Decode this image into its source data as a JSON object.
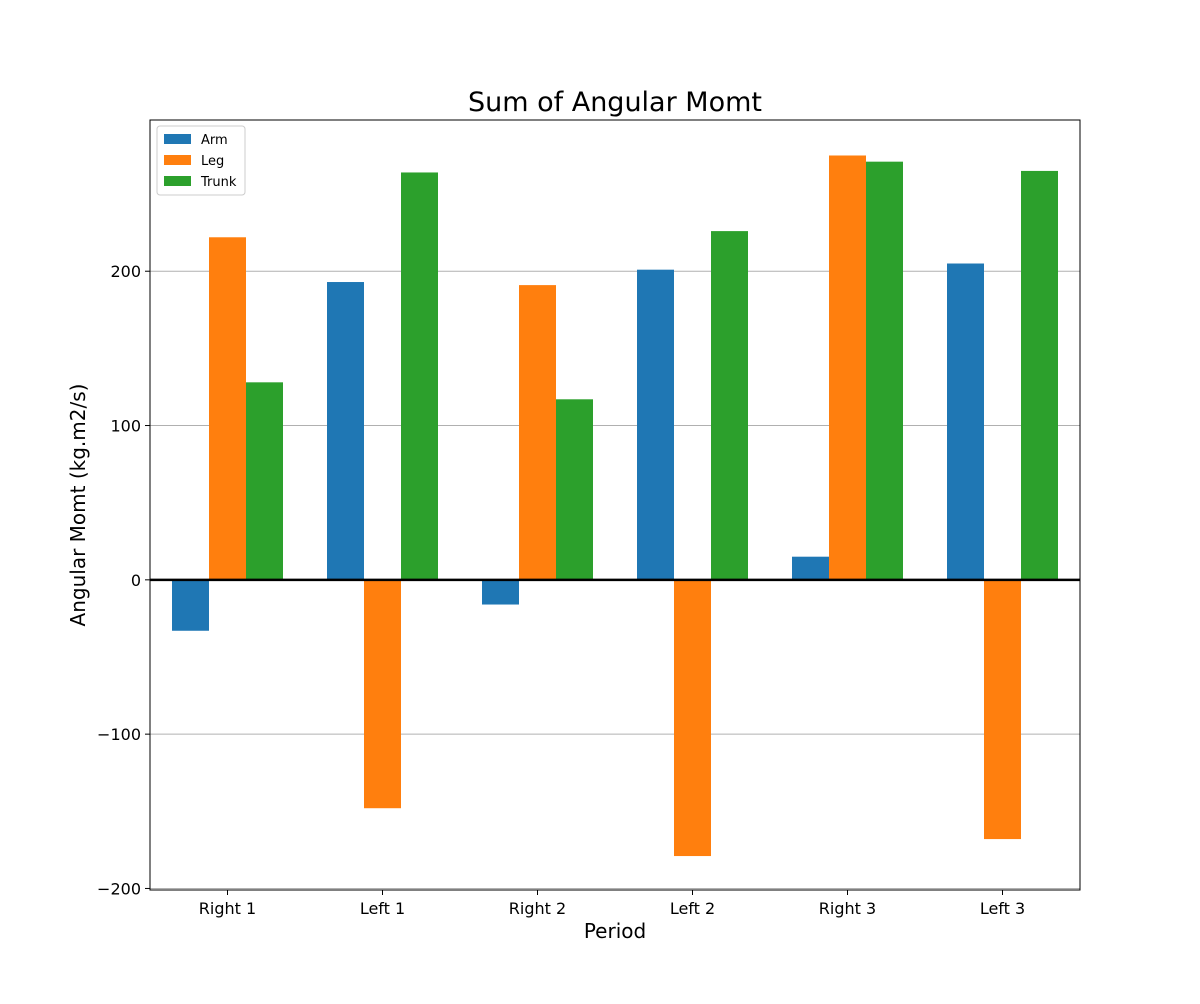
{
  "chart_data": {
    "type": "bar",
    "title": "Sum of Angular Momt",
    "xlabel": "Period",
    "ylabel": "Angular Momt (kg.m2/s)",
    "categories": [
      "Right 1",
      "Left 1",
      "Right 2",
      "Left 2",
      "Right 3",
      "Left 3"
    ],
    "series": [
      {
        "name": "Arm",
        "color": "#1f77b4",
        "values": [
          -33,
          193,
          -16,
          201,
          15,
          205
        ]
      },
      {
        "name": "Leg",
        "color": "#ff7f0e",
        "values": [
          222,
          -148,
          191,
          -179,
          275,
          -168
        ]
      },
      {
        "name": "Trunk",
        "color": "#2ca02c",
        "values": [
          128,
          264,
          117,
          226,
          271,
          265
        ]
      }
    ],
    "ylim": [
      -201,
      298
    ],
    "yticks": [
      -200,
      -100,
      0,
      100,
      200
    ],
    "ytick_labels": [
      "−200",
      "−100",
      "0",
      "100",
      "200"
    ],
    "grid": "y-major",
    "zero_line": true,
    "legend_position": "upper-left"
  }
}
